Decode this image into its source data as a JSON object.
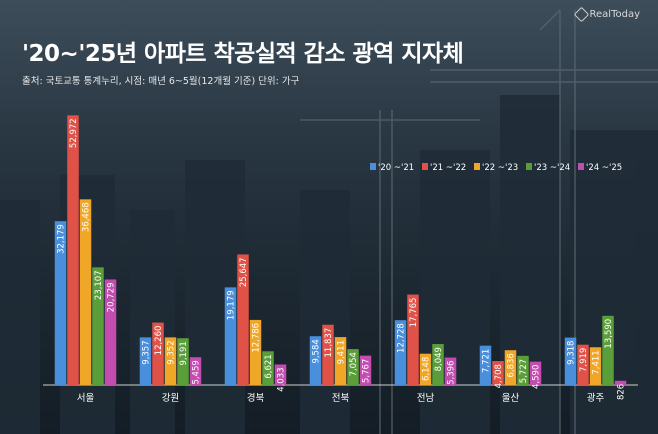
{
  "header": {
    "title": "'20~'25년 아파트 착공실적 감소 광역 지자체",
    "source": "출처: 국토교통 통계누리, 시점: 매년 6~5월(12개월 기준)  단위: 가구",
    "logo_text": "RealToday"
  },
  "chart_data": {
    "type": "bar",
    "categories": [
      "서울",
      "강원",
      "경북",
      "전북",
      "전남",
      "울산",
      "광주"
    ],
    "series": [
      {
        "name": "'20 ~'21",
        "color": "#4a8fdc",
        "values": [
          32179,
          9357,
          19179,
          9584,
          12728,
          7721,
          9318
        ]
      },
      {
        "name": "'21 ~'22",
        "color": "#e05247",
        "values": [
          52972,
          12260,
          25647,
          11837,
          17765,
          4708,
          7919
        ]
      },
      {
        "name": "'22 ~'23",
        "color": "#f0a626",
        "values": [
          36468,
          9352,
          12786,
          9411,
          6148,
          6836,
          7411
        ]
      },
      {
        "name": "'23 ~'24",
        "color": "#5a9e3a",
        "values": [
          23107,
          9191,
          6621,
          7054,
          8049,
          5727,
          13590
        ]
      },
      {
        "name": "'24 ~'25",
        "color": "#c44bb0",
        "values": [
          20729,
          5459,
          4033,
          5767,
          5396,
          4590,
          826
        ]
      }
    ],
    "ylim": [
      0,
      55000
    ],
    "legend_position": "top-right",
    "grid": false
  }
}
